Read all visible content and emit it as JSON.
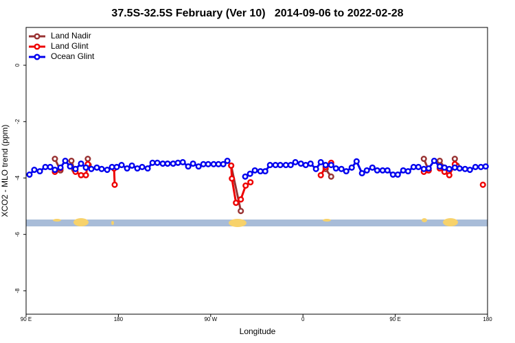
{
  "chart_data": {
    "type": "line",
    "title": "37.5S-32.5S February (Ver 10)   2014-09-06 to 2022-02-28",
    "x_label": "Longitude",
    "y_label": "XCO2 - MLO trend (ppm)",
    "xlim": [
      90,
      540
    ],
    "xticks": [
      {
        "value": 90,
        "label": "90 E"
      },
      180,
      {
        "value": 270,
        "label": "90 W"
      },
      {
        "value": 360,
        "label": "0"
      },
      {
        "value": 450,
        "label": "90 E"
      },
      {
        "value": 540,
        "label": "180"
      }
    ],
    "ylim": [
      -8.83,
      1.34
    ],
    "yticks": [
      0,
      -2,
      -4,
      -6,
      -8
    ],
    "legend": "top-left",
    "series": [
      {
        "name": "Land Nadir",
        "color": "#993333",
        "x": [
          118.1,
          123.5,
          null,
          134.2,
          137,
          null,
          150.2,
          151,
          null,
          290,
          299.4,
          null,
          382.1,
          387.5,
          null,
          477.9,
          482.6,
          null,
          493.4,
          498,
          null,
          508.1,
          510
        ],
        "values": [
          -3.32,
          -3.73,
          null,
          -3.39,
          -3.7,
          null,
          -3.32,
          -3.54,
          null,
          -3.56,
          -5.17,
          null,
          -3.68,
          -3.95,
          null,
          -3.32,
          -3.73,
          null,
          -3.39,
          -3.63,
          null,
          -3.32,
          -3.56
        ]
      },
      {
        "name": "Land Glint",
        "color": "#ee0000",
        "x": [
          118.1,
          123.5,
          null,
          138.2,
          143.6,
          148.3,
          150.2,
          null,
          175.8,
          176.4,
          null,
          290,
          290.7,
          294.7,
          299.4,
          304.1,
          308.8,
          null,
          377.4,
          382.1,
          387.5,
          null,
          477.9,
          482.6,
          null,
          493.4,
          498,
          502.7,
          508.1,
          null,
          535.5
        ],
        "values": [
          -3.78,
          -3.66,
          null,
          -3.78,
          -3.9,
          -3.9,
          -3.51,
          null,
          -3.66,
          -4.24,
          null,
          -3.56,
          -4.02,
          -4.88,
          -4.76,
          -4.27,
          -4.15,
          null,
          -3.9,
          -3.61,
          -3.46,
          null,
          -3.78,
          -3.73,
          null,
          -3.66,
          -3.78,
          -3.9,
          -3.51,
          null,
          -4.24
        ]
      },
      {
        "name": "Ocean Glint",
        "color": "#0000ee",
        "x": [
          93.3,
          98,
          103.4,
          108.8,
          113.5,
          118.1,
          123.5,
          128.2,
          132.9,
          138.2,
          143.6,
          148.3,
          153.6,
          159,
          163.7,
          169.1,
          173.8,
          178.4,
          183.1,
          188.5,
          193.2,
          198.5,
          203.2,
          208.6,
          213.3,
          218,
          223.3,
          228,
          233.4,
          238.1,
          242.8,
          248.1,
          252.8,
          258.2,
          262.9,
          267.6,
          272.9,
          277.6,
          282.3,
          286.3,
          null,
          303.7,
          308.4,
          313.1,
          318.5,
          323.2,
          327.9,
          333.2,
          337.9,
          343.3,
          348,
          352.6,
          358,
          362.7,
          367.4,
          372.7,
          377.4,
          382.1,
          387.5,
          392.2,
          397.5,
          402.2,
          407.6,
          412.3,
          417.6,
          422.3,
          427.7,
          432.4,
          437.7,
          442.4,
          447.8,
          452.5,
          457.8,
          462.5,
          467.9,
          472.6,
          477.9,
          482.6,
          488,
          493.4,
          498,
          502.7,
          508.1,
          512.8,
          518.1,
          522.8,
          528.2,
          533.5,
          538.2
        ],
        "values": [
          -3.88,
          -3.71,
          -3.76,
          -3.61,
          -3.61,
          -3.71,
          -3.63,
          -3.39,
          -3.59,
          -3.68,
          -3.49,
          -3.63,
          -3.68,
          -3.63,
          -3.68,
          -3.71,
          -3.61,
          -3.61,
          -3.54,
          -3.66,
          -3.56,
          -3.66,
          -3.61,
          -3.66,
          -3.46,
          -3.46,
          -3.49,
          -3.49,
          -3.49,
          -3.46,
          -3.44,
          -3.59,
          -3.49,
          -3.59,
          -3.51,
          -3.51,
          -3.51,
          -3.51,
          -3.51,
          -3.39,
          null,
          -3.95,
          -3.85,
          -3.73,
          -3.76,
          -3.76,
          -3.54,
          -3.54,
          -3.54,
          -3.54,
          -3.54,
          -3.44,
          -3.49,
          -3.54,
          -3.49,
          -3.68,
          -3.44,
          -3.54,
          -3.54,
          -3.66,
          -3.68,
          -3.76,
          -3.63,
          -3.41,
          -3.83,
          -3.73,
          -3.63,
          -3.73,
          -3.73,
          -3.73,
          -3.88,
          -3.88,
          -3.73,
          -3.76,
          -3.61,
          -3.61,
          -3.68,
          -3.66,
          -3.39,
          -3.59,
          -3.63,
          -3.68,
          -3.63,
          -3.66,
          -3.68,
          -3.71,
          -3.61,
          -3.61,
          -3.59
        ]
      }
    ]
  }
}
